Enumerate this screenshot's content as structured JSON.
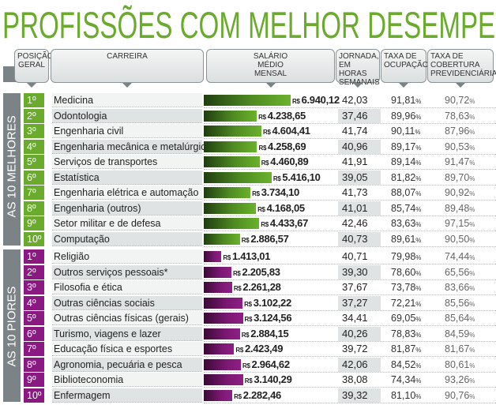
{
  "title": "PROFISSÕES COM MELHOR DESEMPENHO",
  "headers": {
    "posicao": "POSIÇÃO GERAL",
    "carreira": "CARREIRA",
    "salario": "SALÁRIO MÉDIO MENSAL",
    "jornada": "JORNADA, EM HORAS SEMANAIS",
    "ocupacao": "TAXA DE OCUPAÇÃO",
    "cobertura": "TAXA DE COBERTURA PREVIDENCIÁRIA"
  },
  "currency": "R$",
  "colors": {
    "green": "#6aab2e",
    "purple": "#8a1a82",
    "gray": "#7c8386"
  },
  "chart_data": {
    "type": "table",
    "title": "PROFISSÕES COM MELHOR DESEMPENHO",
    "groups": [
      {
        "label": "AS 10 MELHORES",
        "rows": [
          {
            "pos": "1º",
            "career": "Medicina",
            "salary": 6940.12,
            "salary_text": "6.940,12",
            "hours": "42,03",
            "occupation": "91,81",
            "coverage": "90,72"
          },
          {
            "pos": "2º",
            "career": "Odontologia",
            "salary": 4238.65,
            "salary_text": "4.238,65",
            "hours": "37,46",
            "occupation": "89,96",
            "coverage": "78,63"
          },
          {
            "pos": "3º",
            "career": "Engenharia civil",
            "salary": 4604.41,
            "salary_text": "4.604,41",
            "hours": "41,74",
            "occupation": "90,11",
            "coverage": "87,96"
          },
          {
            "pos": "4º",
            "career": "Engenharia mecânica e metalúrgica",
            "salary": 4258.69,
            "salary_text": "4.258,69",
            "hours": "40,96",
            "occupation": "89,17",
            "coverage": "90,53"
          },
          {
            "pos": "5º",
            "career": "Serviços de transportes",
            "salary": 4460.89,
            "salary_text": "4.460,89",
            "hours": "41,91",
            "occupation": "89,14",
            "coverage": "91,47"
          },
          {
            "pos": "6º",
            "career": "Estatística",
            "salary": 5416.1,
            "salary_text": "5.416,10",
            "hours": "39,05",
            "occupation": "81,82",
            "coverage": "89,70"
          },
          {
            "pos": "7º",
            "career": "Engenharia elétrica e automação",
            "salary": 3734.1,
            "salary_text": "3.734,10",
            "hours": "41,73",
            "occupation": "88,07",
            "coverage": "90,92"
          },
          {
            "pos": "8º",
            "career": "Engenharia (outros)",
            "salary": 4168.05,
            "salary_text": "4.168,05",
            "hours": "41,01",
            "occupation": "85,74",
            "coverage": "89,48"
          },
          {
            "pos": "9º",
            "career": "Setor militar e de defesa",
            "salary": 4433.67,
            "salary_text": "4.433,67",
            "hours": "42,46",
            "occupation": "83,63",
            "coverage": "97,15"
          },
          {
            "pos": "10º",
            "career": "Computação",
            "salary": 2886.57,
            "salary_text": "2.886,57",
            "hours": "40,73",
            "occupation": "89,61",
            "coverage": "90,50"
          }
        ]
      },
      {
        "label": "AS 10 PIORES",
        "rows": [
          {
            "pos": "1º",
            "career": "Religião",
            "salary": 1413.01,
            "salary_text": "1.413,01",
            "hours": "40,71",
            "occupation": "79,98",
            "coverage": "74,44"
          },
          {
            "pos": "2º",
            "career": "Outros serviços pessoais*",
            "salary": 2205.83,
            "salary_text": "2.205,83",
            "hours": "39,30",
            "occupation": "78,60",
            "coverage": "65,56"
          },
          {
            "pos": "3º",
            "career": "Filosofia e ética",
            "salary": 2261.28,
            "salary_text": "2.261,28",
            "hours": "37,67",
            "occupation": "73,78",
            "coverage": "83,66"
          },
          {
            "pos": "4º",
            "career": "Outras ciências sociais",
            "salary": 3102.22,
            "salary_text": "3.102,22",
            "hours": "37,27",
            "occupation": "72,21",
            "coverage": "85,56"
          },
          {
            "pos": "5º",
            "career": "Outras ciências físicas (gerais)",
            "salary": 3124.56,
            "salary_text": "3.124,56",
            "hours": "34,41",
            "occupation": "69,05",
            "coverage": "85,64"
          },
          {
            "pos": "6º",
            "career": "Turismo, viagens e lazer",
            "salary": 2884.15,
            "salary_text": "2.884,15",
            "hours": "40,26",
            "occupation": "78,83",
            "coverage": "84,59"
          },
          {
            "pos": "7º",
            "career": "Educação física e esportes",
            "salary": 2423.49,
            "salary_text": "2.423,49",
            "hours": "39,72",
            "occupation": "81,87",
            "coverage": "81,67"
          },
          {
            "pos": "8º",
            "career": "Agronomia, pecuária e pesca",
            "salary": 2964.62,
            "salary_text": "2.964,62",
            "hours": "42,06",
            "occupation": "84,52",
            "coverage": "80,61"
          },
          {
            "pos": "9º",
            "career": "Biblioteconomia",
            "salary": 3140.29,
            "salary_text": "3.140,29",
            "hours": "38,08",
            "occupation": "74,34",
            "coverage": "93,26"
          },
          {
            "pos": "10º",
            "career": "Enfermagem",
            "salary": 2282.46,
            "salary_text": "2.282,46",
            "hours": "39,32",
            "occupation": "81,10",
            "coverage": "90,76"
          }
        ]
      }
    ]
  }
}
